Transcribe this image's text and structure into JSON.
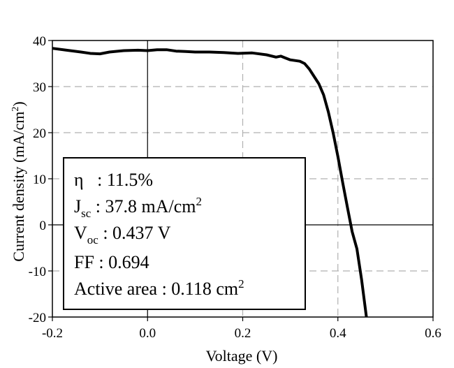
{
  "chart_data": {
    "type": "line",
    "xlabel": "Voltage (V)",
    "ylabel": "Current density (mA/cm",
    "ylabel_sup": "2",
    "ylabel_close": ")",
    "xlim": [
      -0.2,
      0.6
    ],
    "ylim": [
      -20,
      40
    ],
    "x_ticks": [
      -0.2,
      0.0,
      0.2,
      0.4,
      0.6
    ],
    "x_tick_labels": [
      "-0.2",
      "0.0",
      "0.2",
      "0.4",
      "0.6"
    ],
    "y_ticks": [
      -20,
      -10,
      0,
      10,
      20,
      30,
      40
    ],
    "y_tick_labels": [
      "-20",
      "-10",
      "0",
      "10",
      "20",
      "30",
      "40"
    ],
    "grid": true,
    "line_color": "#000000",
    "series": [
      {
        "x": [
          -0.2,
          -0.17,
          -0.14,
          -0.12,
          -0.1,
          -0.08,
          -0.05,
          -0.02,
          0.0,
          0.02,
          0.04,
          0.06,
          0.08,
          0.1,
          0.13,
          0.16,
          0.19,
          0.22,
          0.25,
          0.27,
          0.28,
          0.29,
          0.3,
          0.32,
          0.33,
          0.34,
          0.35,
          0.36,
          0.37,
          0.38,
          0.39,
          0.4,
          0.41,
          0.42,
          0.43,
          0.437,
          0.44,
          0.45,
          0.46
        ],
        "y": [
          38.3,
          37.9,
          37.5,
          37.2,
          37.1,
          37.5,
          37.8,
          37.9,
          37.8,
          38.0,
          38.0,
          37.7,
          37.6,
          37.5,
          37.5,
          37.4,
          37.2,
          37.3,
          36.9,
          36.4,
          36.6,
          36.2,
          35.8,
          35.5,
          35.0,
          33.8,
          32.2,
          30.6,
          28.2,
          24.5,
          20.0,
          14.8,
          9.2,
          3.8,
          -1.5,
          0.0,
          -5.2,
          -12.0,
          -20.0
        ]
      }
    ]
  },
  "annotation": {
    "eta_symbol": "η",
    "eta_value": "   : 11.5%",
    "jsc_main": "J",
    "jsc_sub": "sc",
    "jsc_value": " : 37.8 mA/cm",
    "jsc_sup": "2",
    "voc_main": "V",
    "voc_sub": "oc",
    "voc_value": " : 0.437 V",
    "ff_text": "FF : 0.694",
    "area_text": "Active area : 0.118 cm",
    "area_sup": "2"
  }
}
